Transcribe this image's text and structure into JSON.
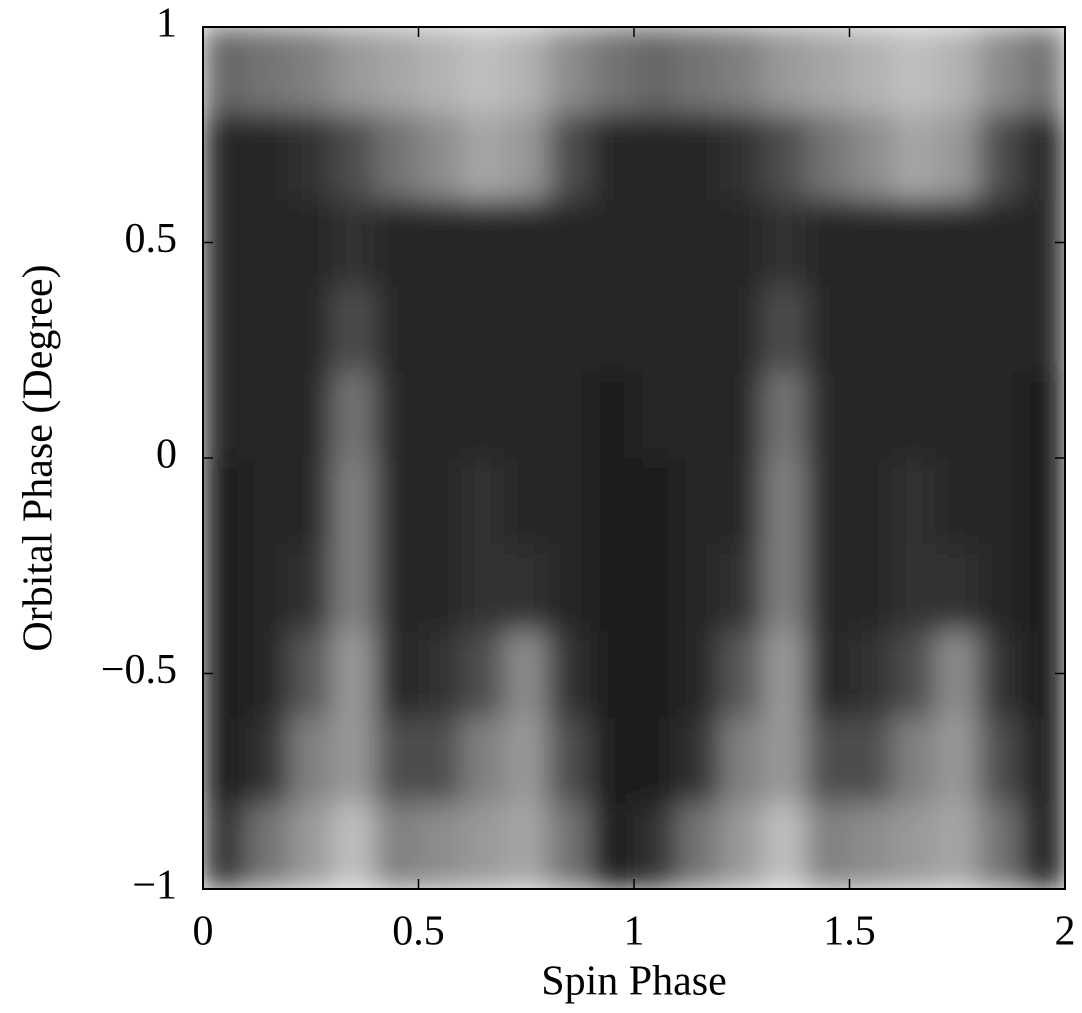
{
  "chart_data": {
    "type": "heatmap",
    "xlabel": "Spin Phase",
    "ylabel": "Orbital Phase (Degree)",
    "xlim": [
      0,
      2
    ],
    "ylim": [
      -1,
      1
    ],
    "xticks": [
      0,
      0.5,
      1,
      1.5,
      2
    ],
    "yticks": [
      {
        "value": -1,
        "label": "−1"
      },
      {
        "value": -0.5,
        "label": "−0.5"
      },
      0,
      0.5,
      1
    ],
    "colormap": "gray",
    "z": [
      [
        0.2,
        0.45,
        0.6,
        0.75,
        0.5,
        0.55,
        0.6,
        0.65,
        0.45,
        0.1,
        0.2,
        0.45,
        0.6,
        0.75,
        0.5,
        0.55,
        0.6,
        0.65,
        0.45,
        0.1
      ],
      [
        0.1,
        0.2,
        0.5,
        0.6,
        0.3,
        0.3,
        0.5,
        0.6,
        0.3,
        0.1,
        0.1,
        0.2,
        0.5,
        0.6,
        0.3,
        0.3,
        0.5,
        0.6,
        0.3,
        0.1
      ],
      [
        0.1,
        0.15,
        0.35,
        0.6,
        0.15,
        0.2,
        0.3,
        0.55,
        0.2,
        0.1,
        0.1,
        0.15,
        0.35,
        0.6,
        0.15,
        0.2,
        0.3,
        0.55,
        0.2,
        0.1
      ],
      [
        0.1,
        0.15,
        0.2,
        0.5,
        0.15,
        0.15,
        0.2,
        0.2,
        0.15,
        0.1,
        0.1,
        0.15,
        0.2,
        0.5,
        0.15,
        0.15,
        0.2,
        0.2,
        0.15,
        0.1
      ],
      [
        0.1,
        0.15,
        0.15,
        0.5,
        0.15,
        0.15,
        0.2,
        0.15,
        0.15,
        0.1,
        0.1,
        0.15,
        0.15,
        0.5,
        0.15,
        0.15,
        0.2,
        0.15,
        0.15,
        0.1
      ],
      [
        0.15,
        0.15,
        0.15,
        0.45,
        0.15,
        0.15,
        0.15,
        0.15,
        0.15,
        0.1,
        0.15,
        0.15,
        0.15,
        0.45,
        0.15,
        0.15,
        0.15,
        0.15,
        0.15,
        0.1
      ],
      [
        0.15,
        0.15,
        0.15,
        0.3,
        0.15,
        0.15,
        0.15,
        0.15,
        0.15,
        0.15,
        0.15,
        0.15,
        0.15,
        0.3,
        0.15,
        0.15,
        0.15,
        0.15,
        0.15,
        0.15
      ],
      [
        0.15,
        0.15,
        0.15,
        0.2,
        0.15,
        0.15,
        0.15,
        0.15,
        0.15,
        0.15,
        0.15,
        0.15,
        0.15,
        0.2,
        0.15,
        0.15,
        0.15,
        0.15,
        0.15,
        0.15
      ],
      [
        0.15,
        0.15,
        0.2,
        0.3,
        0.45,
        0.55,
        0.65,
        0.6,
        0.3,
        0.15,
        0.15,
        0.15,
        0.2,
        0.3,
        0.45,
        0.55,
        0.65,
        0.6,
        0.3,
        0.15
      ],
      [
        0.4,
        0.45,
        0.5,
        0.6,
        0.65,
        0.7,
        0.75,
        0.7,
        0.55,
        0.45,
        0.4,
        0.45,
        0.5,
        0.6,
        0.65,
        0.7,
        0.75,
        0.7,
        0.55,
        0.45
      ]
    ]
  }
}
